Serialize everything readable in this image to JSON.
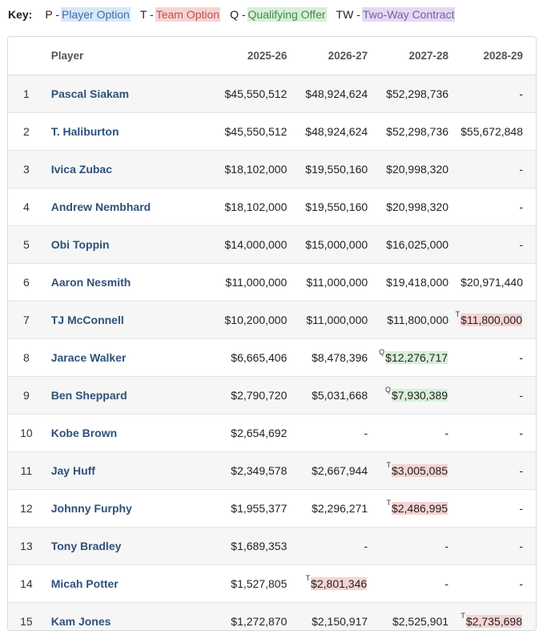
{
  "key": {
    "label": "Key:",
    "items": [
      {
        "code": "P -",
        "text": "Player Option",
        "kind": "p"
      },
      {
        "code": "T -",
        "text": "Team Option",
        "kind": "t"
      },
      {
        "code": "Q -",
        "text": "Qualifying Offer",
        "kind": "q"
      },
      {
        "code": "TW -",
        "text": "Two-Way Contract",
        "kind": "tw"
      }
    ]
  },
  "table": {
    "headers": {
      "rank": "",
      "player": "Player",
      "y1": "2025-26",
      "y2": "2026-27",
      "y3": "2027-28",
      "y4": "2028-29"
    },
    "rows": [
      {
        "rank": "1",
        "player": "Pascal Siakam",
        "cells": [
          {
            "v": "$45,550,512"
          },
          {
            "v": "$48,924,624"
          },
          {
            "v": "$52,298,736"
          },
          {
            "v": "-"
          }
        ]
      },
      {
        "rank": "2",
        "player": "T. Haliburton",
        "cells": [
          {
            "v": "$45,550,512"
          },
          {
            "v": "$48,924,624"
          },
          {
            "v": "$52,298,736"
          },
          {
            "v": "$55,672,848"
          }
        ]
      },
      {
        "rank": "3",
        "player": "Ivica Zubac",
        "cells": [
          {
            "v": "$18,102,000"
          },
          {
            "v": "$19,550,160"
          },
          {
            "v": "$20,998,320"
          },
          {
            "v": "-"
          }
        ]
      },
      {
        "rank": "4",
        "player": "Andrew Nembhard",
        "cells": [
          {
            "v": "$18,102,000"
          },
          {
            "v": "$19,550,160"
          },
          {
            "v": "$20,998,320"
          },
          {
            "v": "-"
          }
        ]
      },
      {
        "rank": "5",
        "player": "Obi Toppin",
        "cells": [
          {
            "v": "$14,000,000"
          },
          {
            "v": "$15,000,000"
          },
          {
            "v": "$16,025,000"
          },
          {
            "v": "-"
          }
        ]
      },
      {
        "rank": "6",
        "player": "Aaron Nesmith",
        "cells": [
          {
            "v": "$11,000,000"
          },
          {
            "v": "$11,000,000"
          },
          {
            "v": "$19,418,000"
          },
          {
            "v": "$20,971,440"
          }
        ]
      },
      {
        "rank": "7",
        "player": "TJ McConnell",
        "cells": [
          {
            "v": "$10,200,000"
          },
          {
            "v": "$11,000,000"
          },
          {
            "v": "$11,800,000"
          },
          {
            "v": "$11,800,000",
            "opt": "T"
          }
        ]
      },
      {
        "rank": "8",
        "player": "Jarace Walker",
        "cells": [
          {
            "v": "$6,665,406"
          },
          {
            "v": "$8,478,396"
          },
          {
            "v": "$12,276,717",
            "opt": "Q"
          },
          {
            "v": "-"
          }
        ]
      },
      {
        "rank": "9",
        "player": "Ben Sheppard",
        "cells": [
          {
            "v": "$2,790,720"
          },
          {
            "v": "$5,031,668"
          },
          {
            "v": "$7,930,389",
            "opt": "Q"
          },
          {
            "v": "-"
          }
        ]
      },
      {
        "rank": "10",
        "player": "Kobe Brown",
        "cells": [
          {
            "v": "$2,654,692"
          },
          {
            "v": "-"
          },
          {
            "v": "-"
          },
          {
            "v": "-"
          }
        ]
      },
      {
        "rank": "11",
        "player": "Jay Huff",
        "cells": [
          {
            "v": "$2,349,578"
          },
          {
            "v": "$2,667,944"
          },
          {
            "v": "$3,005,085",
            "opt": "T"
          },
          {
            "v": "-"
          }
        ]
      },
      {
        "rank": "12",
        "player": "Johnny Furphy",
        "cells": [
          {
            "v": "$1,955,377"
          },
          {
            "v": "$2,296,271"
          },
          {
            "v": "$2,486,995",
            "opt": "T"
          },
          {
            "v": "-"
          }
        ]
      },
      {
        "rank": "13",
        "player": "Tony Bradley",
        "cells": [
          {
            "v": "$1,689,353"
          },
          {
            "v": "-"
          },
          {
            "v": "-"
          },
          {
            "v": "-"
          }
        ]
      },
      {
        "rank": "14",
        "player": "Micah Potter",
        "cells": [
          {
            "v": "$1,527,805"
          },
          {
            "v": "$2,801,346",
            "opt": "T"
          },
          {
            "v": "-"
          },
          {
            "v": "-"
          }
        ]
      },
      {
        "rank": "15",
        "player": "Kam Jones",
        "cells": [
          {
            "v": "$1,272,870"
          },
          {
            "v": "$2,150,917"
          },
          {
            "v": "$2,525,901"
          },
          {
            "v": "$2,735,698",
            "opt": "T"
          }
        ]
      }
    ]
  }
}
